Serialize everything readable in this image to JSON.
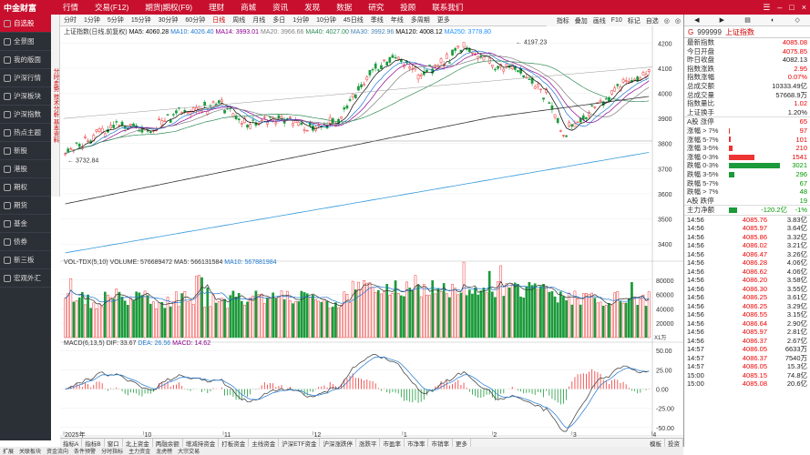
{
  "menubar": {
    "logo": "中金财富",
    "items": [
      "行情",
      "交易(F12)",
      "期货|期权(F9)",
      "理财",
      "商城",
      "资讯",
      "发现",
      "数据",
      "研究",
      "投顾",
      "联系我们"
    ],
    "winctl": [
      "☰",
      "–",
      "□",
      "×"
    ]
  },
  "sidebar": {
    "items": [
      "自选股",
      "全景图",
      "我的版面",
      "沪深行情",
      "沪深板块",
      "沪深指数",
      "热点主题",
      "新股",
      "港股",
      "期权",
      "期货",
      "基金",
      "债券",
      "新三板",
      "宏观外汇"
    ]
  },
  "vtabs": "分时走势 技术分析 基本资料",
  "toolbar": {
    "items": [
      "分时",
      "1分钟",
      "5分钟",
      "15分钟",
      "30分钟",
      "60分钟",
      "日线",
      "周线",
      "月线",
      "多日",
      "1分钟",
      "10分钟",
      "45日线",
      "季线",
      "年线",
      "多周期",
      "更多"
    ],
    "selected": 6,
    "right": [
      "指标",
      "叠加",
      "画线",
      "F10",
      "标记",
      "自选",
      "◎",
      "◎"
    ]
  },
  "legend": {
    "title": "上证指数(日线,前复权)",
    "ma": [
      {
        "k": "MA5: 4060.28",
        "c": "#000"
      },
      {
        "k": "MA10: 4026.40",
        "c": "#1f77d0"
      },
      {
        "k": "MA14: 3993.01",
        "c": "#8b008b"
      },
      {
        "k": "MA20: 3966.66",
        "c": "#808080"
      },
      {
        "k": "MA40: 4027.00",
        "c": "#2e8b57"
      },
      {
        "k": "MA30: 3992.96",
        "c": "#4682b4"
      },
      {
        "k": "MA120: 4008.12",
        "c": "#000"
      },
      {
        "k": "MA250: 3778.80",
        "c": "#1e90ff"
      }
    ]
  },
  "annot": {
    "high": "4197.23",
    "low": "3732.84"
  },
  "yaxis_main": [
    "4200",
    "4100",
    "4000",
    "3900",
    "3800",
    "3700",
    "3600",
    "3500",
    "3400"
  ],
  "vol_legend": {
    "title": "VOL-TDX(5,10)",
    "items": [
      {
        "k": "VOLUME: 576689472",
        "c": "#333"
      },
      {
        "k": "MA5: 566131584",
        "c": "#333"
      },
      {
        "k": "MA10: 567881984",
        "c": "#1f77d0"
      }
    ]
  },
  "yaxis_vol": [
    "80000",
    "60000",
    "40000",
    "20000"
  ],
  "vol_unit": "X1万",
  "macd_legend": {
    "title": "MACD(6,13,5)",
    "items": [
      {
        "k": "DIF: 33.67",
        "c": "#333"
      },
      {
        "k": "DEA: 26.56",
        "c": "#1f77d0"
      },
      {
        "k": "MACD: 14.62",
        "c": "#8b008b"
      }
    ]
  },
  "yaxis_macd": [
    "50.00",
    "25.00",
    "0.00",
    "-25.00",
    "-50.00"
  ],
  "xaxis": [
    "2025年",
    "10",
    "11",
    "12",
    "1",
    "2",
    "3",
    "4"
  ],
  "bottomtabs": [
    "指标A",
    "指标B",
    "窗口",
    "北上资金",
    "两融余额",
    "增减持资金",
    "打板资金",
    "主线资金",
    "沪深ETF资金",
    "沪深涨跌停",
    "涨跌平",
    "市盈率",
    "市净率",
    "市销率",
    "更多"
  ],
  "bottomright": [
    "模板",
    "投资"
  ],
  "bottomtabs2": [
    "扩展",
    "关联板块",
    "资金流向",
    "条件预警",
    "分时指标",
    "主力资金",
    "龙虎榜",
    "大宗交易"
  ],
  "right": {
    "tools": [
      "◀",
      "▶",
      "▤",
      "◐",
      "◇"
    ],
    "code": "999999",
    "name": "上证指数",
    "g": "G",
    "stats": [
      {
        "l": "最新指数",
        "v": "4085.08",
        "c": "red"
      },
      {
        "l": "今日开盘",
        "v": "4075.85",
        "c": "red"
      },
      {
        "l": "昨日收盘",
        "v": "4082.13",
        "c": ""
      },
      {
        "l": "指数涨跌",
        "v": "2.95",
        "c": "red"
      },
      {
        "l": "指数涨幅",
        "v": "0.07%",
        "c": "red"
      },
      {
        "l": "总成交额",
        "v": "10333.49亿",
        "c": ""
      },
      {
        "l": "总成交量",
        "v": "57668.9万",
        "c": ""
      },
      {
        "l": "指数量比",
        "v": "1.02",
        "c": "red"
      },
      {
        "l": "上证换手",
        "v": "1.20%",
        "c": ""
      }
    ],
    "dist": [
      {
        "l": "A股 涨停",
        "v": "65",
        "c": "red",
        "frac": 0
      },
      {
        "l": "涨幅 > 7%",
        "v": "97",
        "c": "red",
        "frac": 0.02
      },
      {
        "l": "涨幅 5-7%",
        "v": "101",
        "c": "red",
        "frac": 0.03
      },
      {
        "l": "涨幅 3-5%",
        "v": "210",
        "c": "red",
        "frac": 0.07
      },
      {
        "l": "涨幅 0-3%",
        "v": "1541",
        "c": "red",
        "frac": 0.5
      },
      {
        "l": "跌幅 0-3%",
        "v": "3021",
        "c": "green",
        "frac": 1.0
      },
      {
        "l": "跌幅 3-5%",
        "v": "296",
        "c": "green",
        "frac": 0.1
      },
      {
        "l": "跌幅 5-7%",
        "v": "67",
        "c": "green",
        "frac": 0
      },
      {
        "l": "跌幅 > 7%",
        "v": "48",
        "c": "green",
        "frac": 0
      },
      {
        "l": "A股 跌停",
        "v": "19",
        "c": "green",
        "frac": 0
      }
    ],
    "netflow": {
      "l": "主力净额",
      "v": "-120.2亿",
      "p": "-1%"
    },
    "ticks": [
      [
        "14:56",
        "4085.76",
        "3.83亿"
      ],
      [
        "14:56",
        "4085.97",
        "3.64亿"
      ],
      [
        "14:56",
        "4085.86",
        "3.32亿"
      ],
      [
        "14:56",
        "4086.02",
        "3.21亿"
      ],
      [
        "14:56",
        "4086.47",
        "3.26亿"
      ],
      [
        "14:56",
        "4086.28",
        "4.06亿"
      ],
      [
        "14:56",
        "4086.62",
        "4.06亿"
      ],
      [
        "14:56",
        "4086.20",
        "3.58亿"
      ],
      [
        "14:56",
        "4086.30",
        "3.55亿"
      ],
      [
        "14:56",
        "4086.25",
        "3.61亿"
      ],
      [
        "14:56",
        "4086.25",
        "3.29亿"
      ],
      [
        "14:56",
        "4086.55",
        "3.15亿"
      ],
      [
        "14:56",
        "4086.64",
        "2.90亿"
      ],
      [
        "14:56",
        "4085.97",
        "2.81亿"
      ],
      [
        "14:56",
        "4086.37",
        "2.67亿"
      ],
      [
        "14:57",
        "4086.05",
        "6633万"
      ],
      [
        "14:57",
        "4086.37",
        "7540万"
      ],
      [
        "14:57",
        "4086.05",
        "15.3亿"
      ],
      [
        "15:00",
        "4085.15",
        "74.8亿"
      ],
      [
        "15:00",
        "4085.08",
        "20.6亿"
      ]
    ]
  }
}
